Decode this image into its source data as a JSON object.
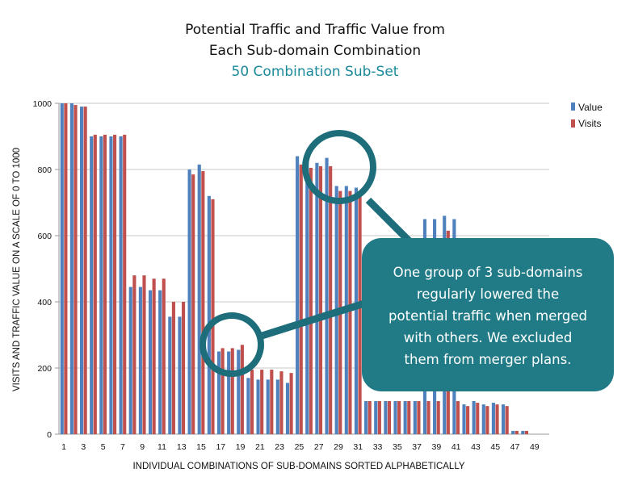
{
  "chart_data": {
    "type": "bar",
    "title": "Potential Traffic and Traffic Value from",
    "title_line2": "Each Sub-domain Combination",
    "subtitle": "50 Combination Sub-Set",
    "xlabel": "INDIVIDUAL COMBINATIONS OF SUB-DOMAINS SORTED ALPHABETICALLY",
    "ylabel": "VISITS AND TRAFFIC VALUE ON A SCALE OF 0 TO 1000",
    "ylim": [
      0,
      1000
    ],
    "yticks": [
      "0",
      "200",
      "400",
      "600",
      "800",
      "1000"
    ],
    "xtick_labels": [
      "1",
      "3",
      "5",
      "7",
      "9",
      "11",
      "13",
      "15",
      "17",
      "19",
      "21",
      "23",
      "25",
      "27",
      "29",
      "31",
      "33",
      "35",
      "37",
      "39",
      "41",
      "43",
      "45",
      "47",
      "49"
    ],
    "grid": true,
    "legend_position": "top-right",
    "categories": [
      1,
      2,
      3,
      4,
      5,
      6,
      7,
      8,
      9,
      10,
      11,
      12,
      13,
      14,
      15,
      16,
      17,
      18,
      19,
      20,
      21,
      22,
      23,
      24,
      25,
      26,
      27,
      28,
      29,
      30,
      31,
      32,
      33,
      34,
      35,
      36,
      37,
      38,
      39,
      40,
      41,
      42,
      43,
      44,
      45,
      46,
      47,
      48,
      49,
      50
    ],
    "series": [
      {
        "name": "Value",
        "color": "#4f81bd",
        "values": [
          1000,
          1000,
          990,
          900,
          900,
          900,
          900,
          445,
          445,
          435,
          435,
          355,
          355,
          800,
          815,
          720,
          250,
          250,
          255,
          170,
          165,
          165,
          165,
          155,
          840,
          840,
          820,
          835,
          750,
          750,
          745,
          100,
          100,
          100,
          100,
          100,
          100,
          650,
          650,
          660,
          650,
          90,
          100,
          90,
          95,
          90,
          10,
          10,
          0,
          0
        ]
      },
      {
        "name": "Visits",
        "color": "#c0504d",
        "values": [
          1000,
          995,
          990,
          905,
          905,
          905,
          905,
          480,
          480,
          470,
          470,
          400,
          400,
          785,
          795,
          710,
          260,
          260,
          270,
          195,
          195,
          195,
          190,
          185,
          815,
          805,
          810,
          810,
          735,
          735,
          730,
          100,
          100,
          100,
          100,
          100,
          100,
          100,
          100,
          615,
          100,
          85,
          95,
          85,
          90,
          85,
          10,
          10,
          0,
          0
        ]
      }
    ],
    "annotation": {
      "lines": [
        "One group of 3 sub-domains",
        "regularly lowered the",
        "potential traffic when merged",
        "with others. We excluded",
        "them from merger plans."
      ],
      "highlight_groups": [
        "17-19",
        "26-30"
      ],
      "callout_color": "#217b87",
      "circle_color": "#1d6e7a"
    }
  }
}
